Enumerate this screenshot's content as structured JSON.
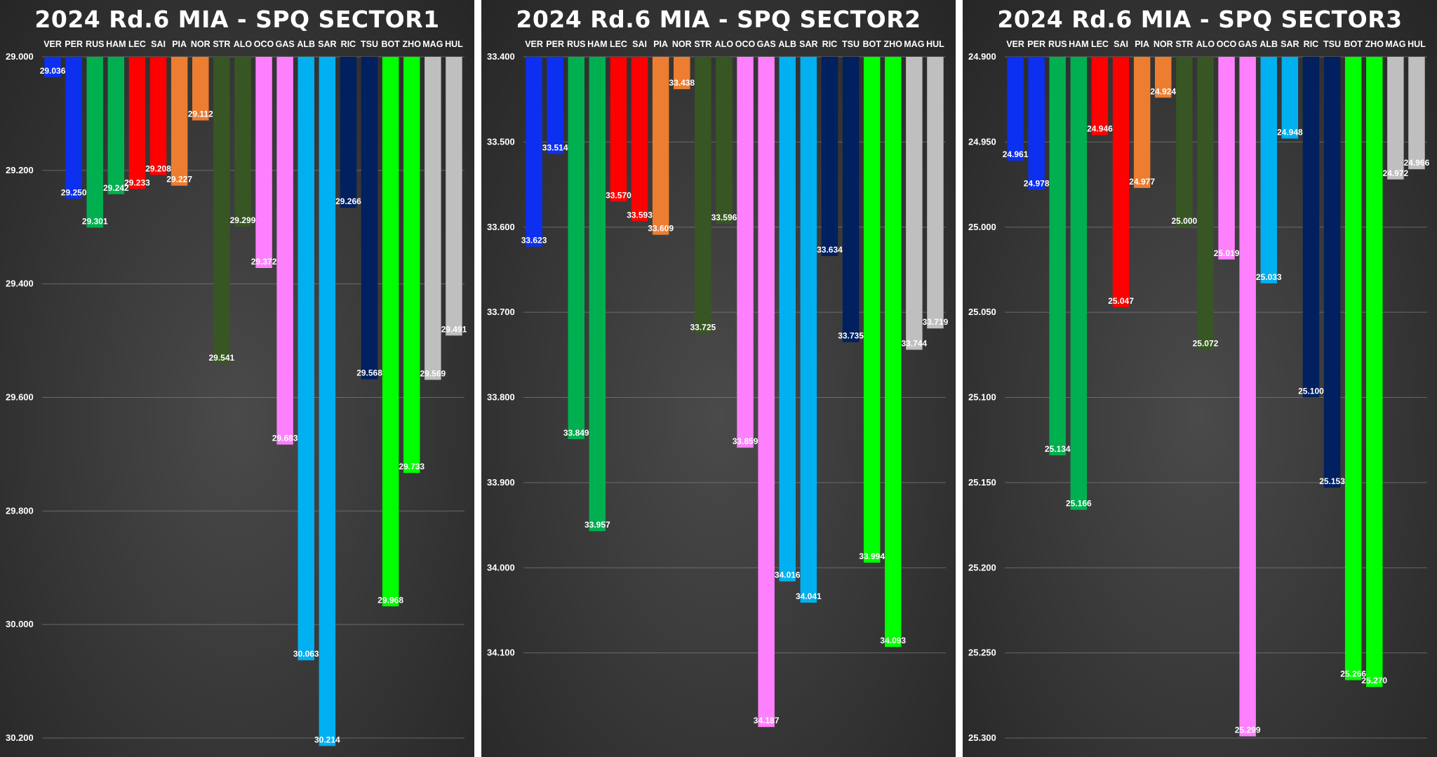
{
  "chart_data": [
    {
      "type": "bar",
      "title": "2024 Rd.6 MIA - SPQ SECTOR1",
      "xlabel": "",
      "ylabel": "",
      "ylim": [
        29.0,
        30.2
      ],
      "y_reversed": true,
      "yticks": [
        "29.000",
        "29.200",
        "29.400",
        "29.600",
        "29.800",
        "30.000",
        "30.200"
      ],
      "categories": [
        "VER",
        "PER",
        "RUS",
        "HAM",
        "LEC",
        "SAI",
        "PIA",
        "NOR",
        "STR",
        "ALO",
        "OCO",
        "GAS",
        "ALB",
        "SAR",
        "RIC",
        "TSU",
        "BOT",
        "ZHO",
        "MAG",
        "HUL"
      ],
      "values": [
        29.036,
        29.25,
        29.301,
        29.242,
        29.233,
        29.208,
        29.227,
        29.112,
        29.541,
        29.299,
        29.372,
        29.683,
        30.063,
        30.214,
        29.266,
        29.568,
        29.968,
        29.733,
        29.569,
        29.491
      ],
      "labels": [
        "29.036",
        "29.250",
        "29.301",
        "29.242",
        "29.233",
        "29.208",
        "29.227",
        "29.112",
        "29.541",
        "29.299",
        "29.372",
        "29.683",
        "30.063",
        "30.214",
        "29.266",
        "29.568",
        "29.968",
        "29.733",
        "29.569",
        "29.491"
      ]
    },
    {
      "type": "bar",
      "title": "2024 Rd.6 MIA - SPQ SECTOR2",
      "xlabel": "",
      "ylabel": "",
      "ylim": [
        33.4,
        34.2
      ],
      "y_reversed": true,
      "yticks": [
        "33.400",
        "33.500",
        "33.600",
        "33.700",
        "33.800",
        "33.900",
        "34.000",
        "34.100"
      ],
      "categories": [
        "VER",
        "PER",
        "RUS",
        "HAM",
        "LEC",
        "SAI",
        "PIA",
        "NOR",
        "STR",
        "ALO",
        "OCO",
        "GAS",
        "ALB",
        "SAR",
        "RIC",
        "TSU",
        "BOT",
        "ZHO",
        "MAG",
        "HUL"
      ],
      "values": [
        33.623,
        33.514,
        33.849,
        33.957,
        33.57,
        33.593,
        33.609,
        33.438,
        33.725,
        33.596,
        33.859,
        34.187,
        34.016,
        34.041,
        33.634,
        33.735,
        33.994,
        34.093,
        33.744,
        33.719
      ],
      "labels": [
        "33.623",
        "33.514",
        "33.849",
        "33.957",
        "33.570",
        "33.593",
        "33.609",
        "33.438",
        "33.725",
        "33.596",
        "33.859",
        "34.187",
        "34.016",
        "34.041",
        "33.634",
        "33.735",
        "33.994",
        "34.093",
        "33.744",
        "33.719"
      ]
    },
    {
      "type": "bar",
      "title": "2024 Rd.6 MIA - SPQ SECTOR3",
      "xlabel": "",
      "ylabel": "",
      "ylim": [
        24.9,
        25.3
      ],
      "y_reversed": true,
      "yticks": [
        "24.900",
        "24.950",
        "25.000",
        "25.050",
        "25.100",
        "25.150",
        "25.200",
        "25.250",
        "25.300"
      ],
      "categories": [
        "VER",
        "PER",
        "RUS",
        "HAM",
        "LEC",
        "SAI",
        "PIA",
        "NOR",
        "STR",
        "ALO",
        "OCO",
        "GAS",
        "ALB",
        "SAR",
        "RIC",
        "TSU",
        "BOT",
        "ZHO",
        "MAG",
        "HUL"
      ],
      "values": [
        24.961,
        24.978,
        25.134,
        25.166,
        24.946,
        25.047,
        24.977,
        24.924,
        25.0,
        25.072,
        25.019,
        25.299,
        25.033,
        24.948,
        25.1,
        25.153,
        25.266,
        25.27,
        24.972,
        24.966
      ],
      "labels": [
        "24.961",
        "24.978",
        "25.134",
        "25.166",
        "24.946",
        "25.047",
        "24.977",
        "24.924",
        "25.000",
        "25.072",
        "25.019",
        "25.299",
        "25.033",
        "24.948",
        "25.100",
        "25.153",
        "25.266",
        "25.270",
        "24.972",
        "24.966"
      ]
    }
  ],
  "team_colors": {
    "VER": "#0d2ff0",
    "PER": "#0d2ff0",
    "RUS": "#00b050",
    "HAM": "#00b050",
    "LEC": "#ff0000",
    "SAI": "#ff0000",
    "PIA": "#ed7d31",
    "NOR": "#ed7d31",
    "STR": "#375623",
    "ALO": "#375623",
    "OCO": "#ff80ff",
    "GAS": "#ff80ff",
    "ALB": "#00b0f0",
    "SAR": "#00b0f0",
    "RIC": "#002060",
    "TSU": "#002060",
    "BOT": "#00ff00",
    "ZHO": "#00ff00",
    "MAG": "#bfbfbf",
    "HUL": "#bfbfbf"
  }
}
